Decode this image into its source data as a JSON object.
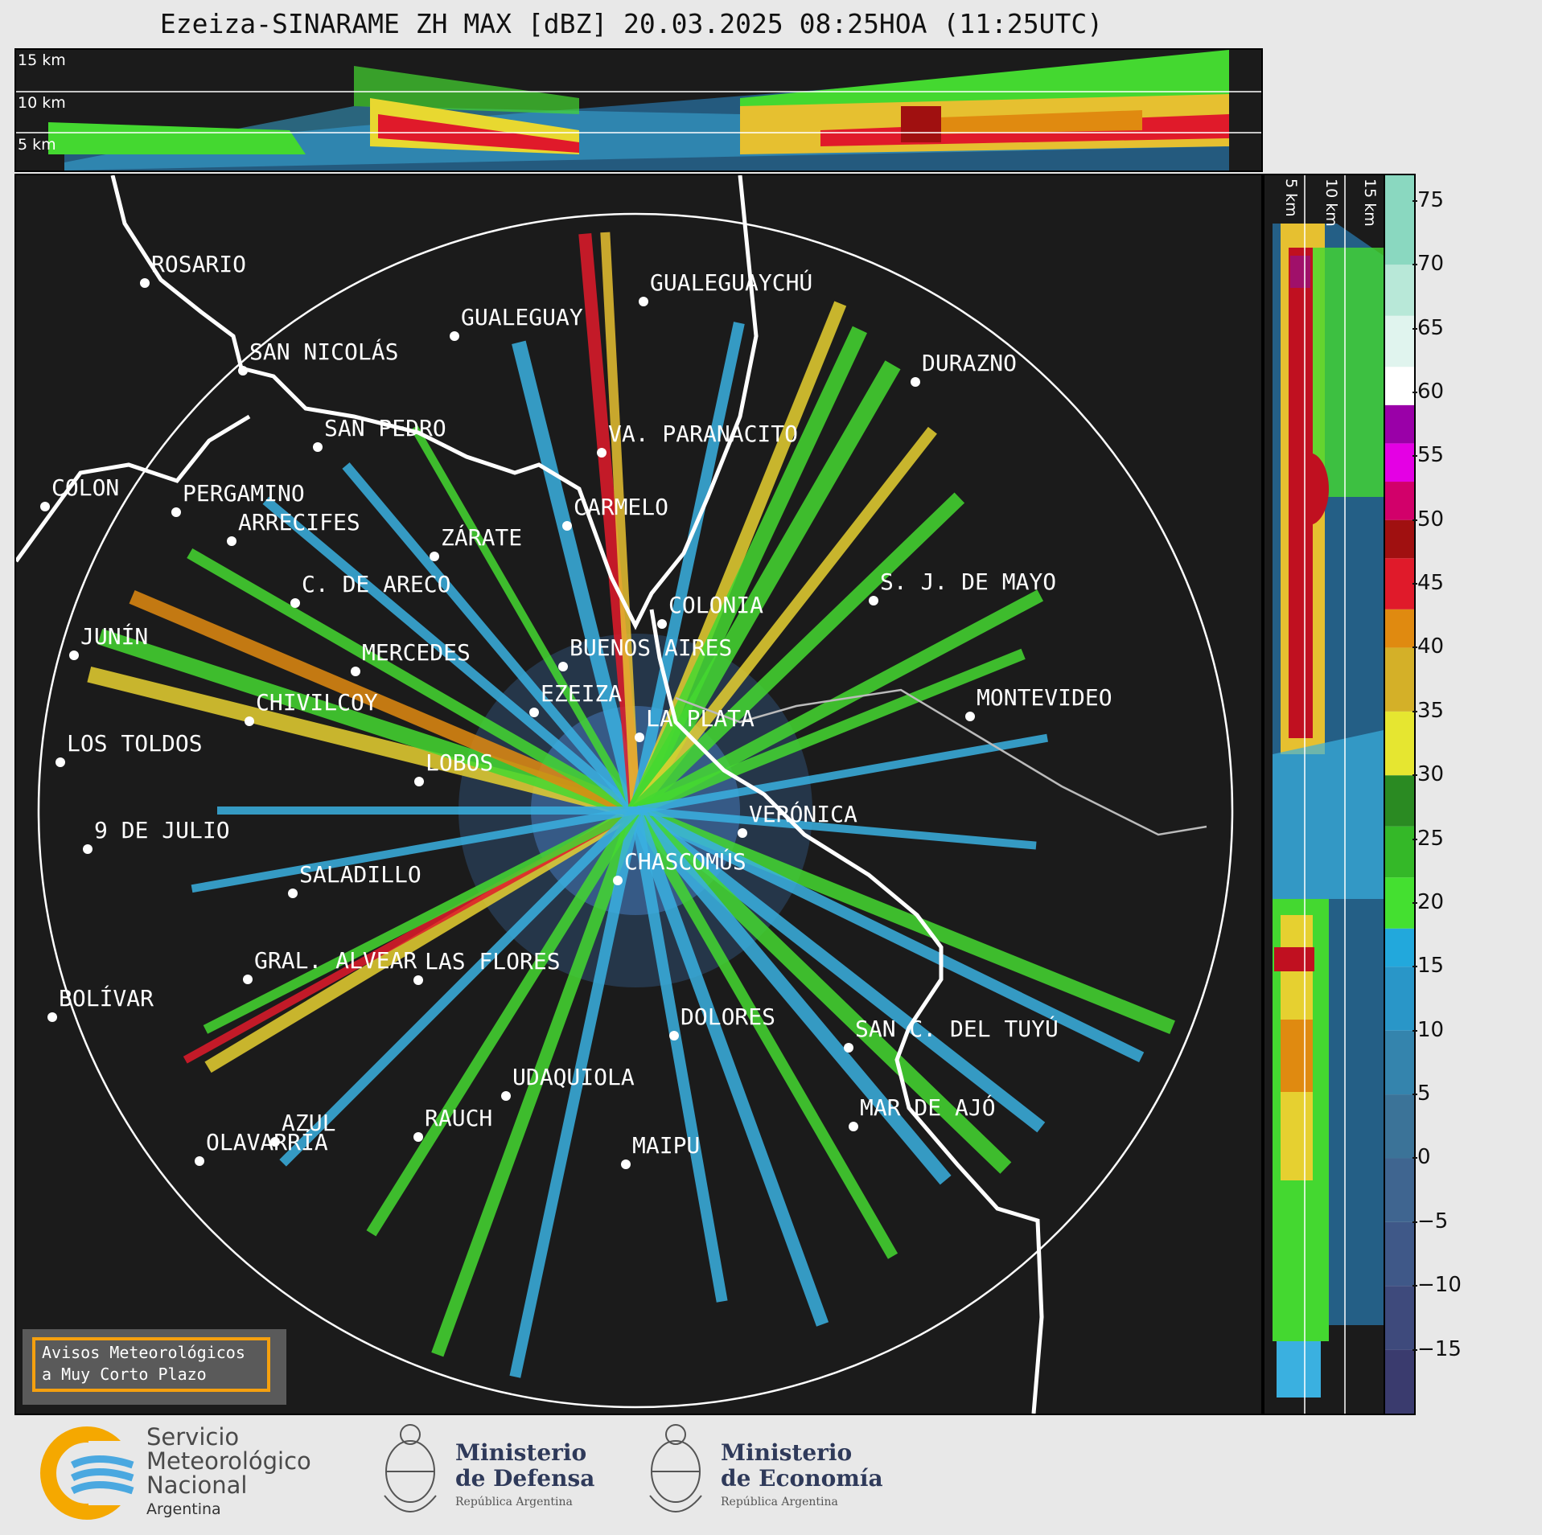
{
  "title": "Ezeiza-SINARAME ZH MAX [dBZ] 20.03.2025 08:25HOA (11:25UTC)",
  "top_panel": {
    "altitude_labels": [
      "15 km",
      "10 km",
      "5 km"
    ]
  },
  "side_panel": {
    "altitude_labels": [
      "5 km",
      "10 km",
      "15 km"
    ]
  },
  "colorbar": {
    "unit": "dBZ",
    "ticks": [
      "75",
      "70",
      "65",
      "60",
      "55",
      "50",
      "45",
      "40",
      "35",
      "30",
      "25",
      "20",
      "15",
      "10",
      "5",
      "0",
      "−5",
      "−10",
      "−15"
    ],
    "range": [
      -20,
      77
    ],
    "stops": [
      {
        "from": -20,
        "to": -15,
        "color": "#3a3b6e"
      },
      {
        "from": -15,
        "to": -10,
        "color": "#3e4a7c"
      },
      {
        "from": -10,
        "to": -5,
        "color": "#3f5888"
      },
      {
        "from": -5,
        "to": 0,
        "color": "#3f6590"
      },
      {
        "from": 0,
        "to": 5,
        "color": "#3b7398"
      },
      {
        "from": 5,
        "to": 10,
        "color": "#3484ad"
      },
      {
        "from": 10,
        "to": 15,
        "color": "#2996c8"
      },
      {
        "from": 15,
        "to": 18,
        "color": "#22a8dc"
      },
      {
        "from": 18,
        "to": 22,
        "color": "#44e030"
      },
      {
        "from": 22,
        "to": 26,
        "color": "#34b828"
      },
      {
        "from": 26,
        "to": 30,
        "color": "#2a8a22"
      },
      {
        "from": 30,
        "to": 35,
        "color": "#e6e630"
      },
      {
        "from": 35,
        "to": 40,
        "color": "#d4b028"
      },
      {
        "from": 40,
        "to": 43,
        "color": "#e08a10"
      },
      {
        "from": 43,
        "to": 47,
        "color": "#e01a2a"
      },
      {
        "from": 47,
        "to": 50,
        "color": "#a01010"
      },
      {
        "from": 50,
        "to": 53,
        "color": "#d2006a"
      },
      {
        "from": 53,
        "to": 56,
        "color": "#e400e4"
      },
      {
        "from": 56,
        "to": 59,
        "color": "#9a00a8"
      },
      {
        "from": 59,
        "to": 62,
        "color": "#ffffff"
      },
      {
        "from": 62,
        "to": 66,
        "color": "#e0f4ee"
      },
      {
        "from": 66,
        "to": 70,
        "color": "#b8e8d8"
      },
      {
        "from": 70,
        "to": 77,
        "color": "#8ad8c0"
      }
    ]
  },
  "cities": [
    {
      "name": "ROSARIO"
    },
    {
      "name": "GUALEGUAYCHÚ"
    },
    {
      "name": "GUALEGUAY"
    },
    {
      "name": "SAN NICOLÁS"
    },
    {
      "name": "DURAZNO"
    },
    {
      "name": "SAN PEDRO"
    },
    {
      "name": "VA. PARANACITO"
    },
    {
      "name": "COLON"
    },
    {
      "name": "PERGAMINO"
    },
    {
      "name": "CARMELO"
    },
    {
      "name": "ARRECIFES"
    },
    {
      "name": "ZÁRATE"
    },
    {
      "name": "S. J. DE MAYO"
    },
    {
      "name": "C. DE ARECO"
    },
    {
      "name": "COLONIA"
    },
    {
      "name": "JUNÍN"
    },
    {
      "name": "BUENOS AIRES"
    },
    {
      "name": "MERCEDES"
    },
    {
      "name": "EZEIZA"
    },
    {
      "name": "MONTEVIDEO"
    },
    {
      "name": "CHIVILCOY"
    },
    {
      "name": "LA PLATA"
    },
    {
      "name": "LOS TOLDOS"
    },
    {
      "name": "LOBOS"
    },
    {
      "name": "VERÓNICA"
    },
    {
      "name": "9 DE JULIO"
    },
    {
      "name": "CHASCOMÚS"
    },
    {
      "name": "SALADILLO"
    },
    {
      "name": "GRAL. ALVEAR"
    },
    {
      "name": "LAS FLORES"
    },
    {
      "name": "BOLÍVAR"
    },
    {
      "name": "DOLORES"
    },
    {
      "name": "SAN C. DEL TUYÚ"
    },
    {
      "name": "UDAQUIOLA"
    },
    {
      "name": "MAR DE AJÓ"
    },
    {
      "name": "AZUL"
    },
    {
      "name": "RAUCH"
    },
    {
      "name": "MAIPU"
    },
    {
      "name": "OLAVARRÍA"
    }
  ],
  "warning_box": {
    "line1": "Avisos Meteorológicos",
    "line2": "a Muy Corto Plazo"
  },
  "logos": {
    "smn": {
      "line1": "Servicio",
      "line2": "Meteorológico",
      "line3": "Nacional",
      "line4": "Argentina"
    },
    "defensa": {
      "line1": "Ministerio",
      "line2": "de Defensa",
      "line3": "República Argentina"
    },
    "economia": {
      "line1": "Ministerio",
      "line2": "de Economía",
      "line3": "República Argentina"
    }
  }
}
